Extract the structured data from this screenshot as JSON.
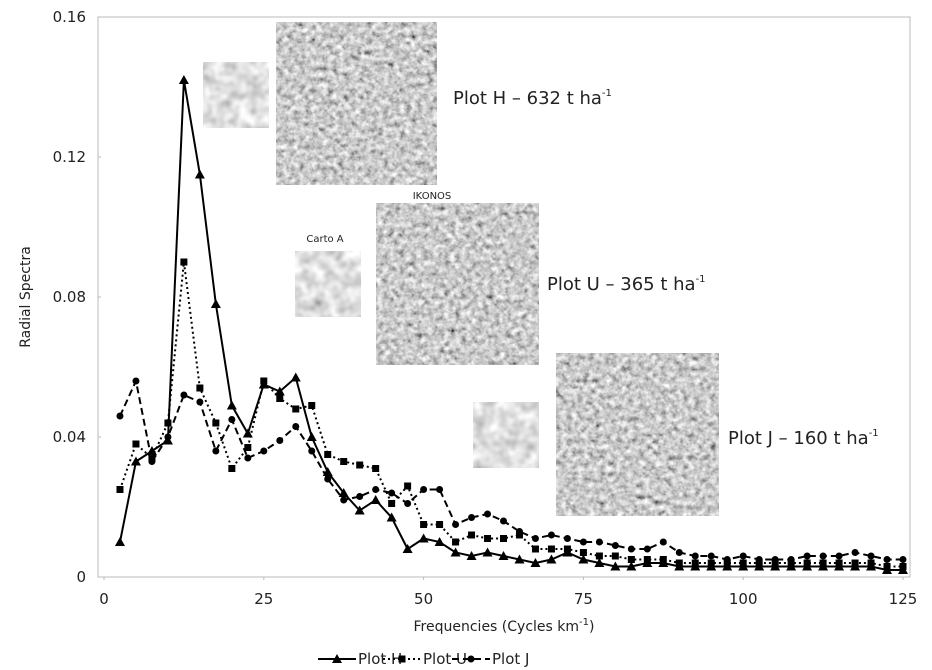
{
  "chart_data": {
    "type": "line",
    "xlabel": {
      "text": "Frequencies (Cycles km",
      "sup": "-1",
      "tail": ")"
    },
    "ylabel": "Radial Spectra",
    "x": [
      2.5,
      5,
      7.5,
      10,
      12.5,
      15,
      17.5,
      20,
      22.5,
      25,
      27.5,
      30,
      32.5,
      35,
      37.5,
      40,
      42.5,
      45,
      47.5,
      50,
      52.5,
      55,
      57.5,
      60,
      62.5,
      65,
      67.5,
      70,
      72.5,
      75,
      77.5,
      80,
      82.5,
      85,
      87.5,
      90,
      92.5,
      95,
      97.5,
      100,
      102.5,
      105,
      107.5,
      110,
      112.5,
      115,
      117.5,
      120,
      122.5,
      125
    ],
    "series": [
      {
        "name": "Plot H",
        "color": "#000000",
        "line_style": "solid",
        "marker": "triangle",
        "values": [
          0.01,
          0.033,
          0.036,
          0.039,
          0.142,
          0.115,
          0.078,
          0.049,
          0.041,
          0.055,
          0.053,
          0.057,
          0.04,
          0.03,
          0.024,
          0.019,
          0.022,
          0.017,
          0.008,
          0.011,
          0.01,
          0.007,
          0.006,
          0.007,
          0.006,
          0.005,
          0.004,
          0.005,
          0.007,
          0.005,
          0.004,
          0.003,
          0.003,
          0.004,
          0.004,
          0.003,
          0.003,
          0.003,
          0.003,
          0.003,
          0.003,
          0.003,
          0.003,
          0.003,
          0.003,
          0.003,
          0.003,
          0.003,
          0.002,
          0.002
        ]
      },
      {
        "name": "Plot U",
        "color": "#000000",
        "line_style": "dotted",
        "marker": "square",
        "values": [
          0.025,
          0.038,
          0.034,
          0.044,
          0.09,
          0.054,
          0.044,
          0.031,
          0.037,
          0.056,
          0.051,
          0.048,
          0.049,
          0.035,
          0.033,
          0.032,
          0.031,
          0.021,
          0.026,
          0.015,
          0.015,
          0.01,
          0.012,
          0.011,
          0.011,
          0.012,
          0.008,
          0.008,
          0.008,
          0.007,
          0.006,
          0.006,
          0.005,
          0.005,
          0.005,
          0.004,
          0.004,
          0.004,
          0.004,
          0.004,
          0.004,
          0.004,
          0.004,
          0.004,
          0.004,
          0.004,
          0.004,
          0.004,
          0.003,
          0.003
        ]
      },
      {
        "name": "Plot J",
        "color": "#000000",
        "line_style": "dashed",
        "marker": "circle",
        "values": [
          0.046,
          0.056,
          0.033,
          0.04,
          0.052,
          0.05,
          0.036,
          0.045,
          0.034,
          0.036,
          0.039,
          0.043,
          0.036,
          0.028,
          0.022,
          0.023,
          0.025,
          0.024,
          0.021,
          0.025,
          0.025,
          0.015,
          0.017,
          0.018,
          0.016,
          0.013,
          0.011,
          0.012,
          0.011,
          0.01,
          0.01,
          0.009,
          0.008,
          0.008,
          0.01,
          0.007,
          0.006,
          0.006,
          0.005,
          0.006,
          0.005,
          0.005,
          0.005,
          0.006,
          0.006,
          0.006,
          0.007,
          0.006,
          0.005,
          0.005
        ]
      }
    ],
    "xlim": [
      0,
      125
    ],
    "xticks": [
      0,
      25,
      50,
      75,
      100,
      125
    ],
    "ylim": [
      0,
      0.16
    ],
    "yticks": [
      0,
      0.04,
      0.08,
      0.12,
      0.16
    ],
    "grid": false,
    "legend": "bottom",
    "annotations": [
      {
        "text": "Plot H – 632 t ha",
        "sup": "-1"
      },
      {
        "text": "Plot U – 365 t ha",
        "sup": "-1"
      },
      {
        "text": "Plot J – 160 t ha",
        "sup": "-1"
      },
      {
        "text": "IKONOS"
      },
      {
        "text": "Carto A"
      }
    ]
  }
}
